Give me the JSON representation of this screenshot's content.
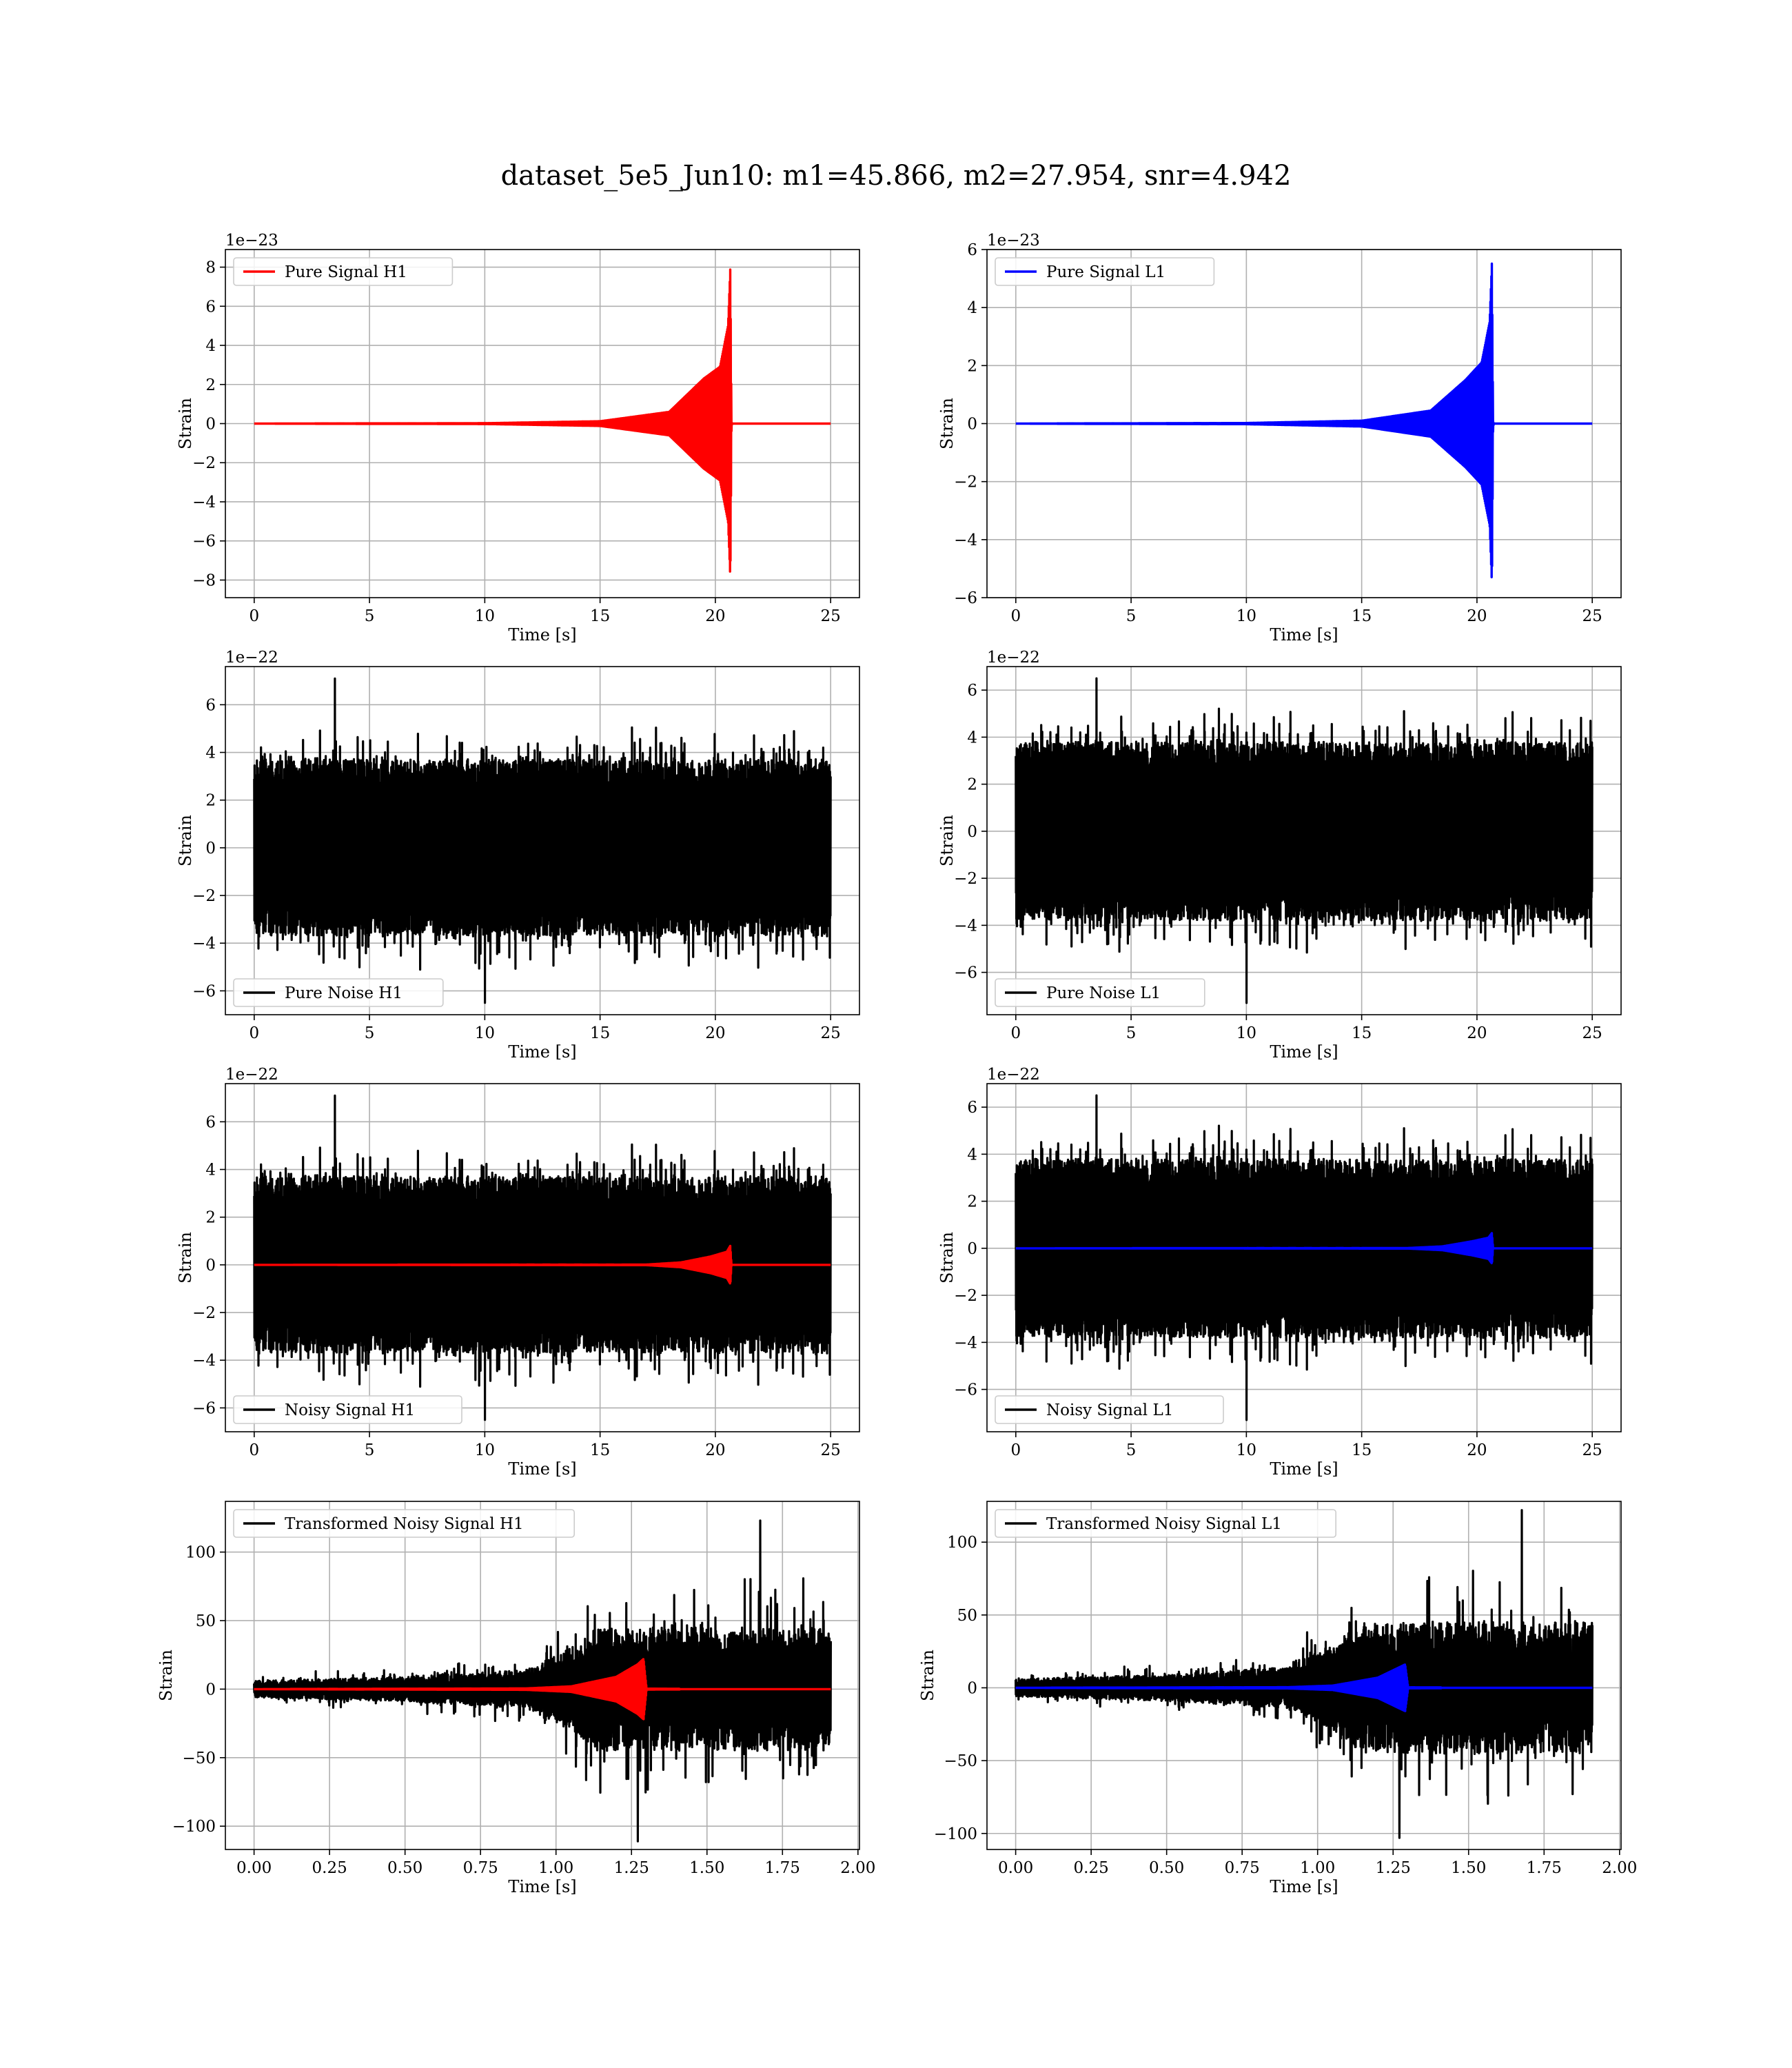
{
  "figure": {
    "title": "dataset_5e5_Jun10: m1=45.866, m2=27.954, snr=4.942"
  },
  "chart_data": [
    {
      "id": "pure-signal-h1",
      "type": "line",
      "xlabel": "Time [s]",
      "ylabel": "Strain",
      "offset_text": "1e−23",
      "xlim": [
        -1.25,
        26.25
      ],
      "ylim": [
        -8.9,
        8.9
      ],
      "xticks": [
        0,
        5,
        10,
        15,
        20,
        25
      ],
      "xtick_labels": [
        "0",
        "5",
        "10",
        "15",
        "20",
        "25"
      ],
      "yticks": [
        -8,
        -6,
        -4,
        -2,
        0,
        2,
        4,
        6,
        8
      ],
      "ytick_labels": [
        "−8",
        "−6",
        "−4",
        "−2",
        "0",
        "2",
        "4",
        "6",
        "8"
      ],
      "legend_position": "upper left",
      "series": [
        {
          "name": "Pure Signal H1",
          "color": "#ff0000",
          "kind": "chirp",
          "t_start": 0,
          "t_end": 25,
          "t_merger": 20.6,
          "envelope": [
            [
              0,
              0
            ],
            [
              10,
              0.02
            ],
            [
              15,
              0.12
            ],
            [
              18,
              0.6
            ],
            [
              19.5,
              2.3
            ],
            [
              20.2,
              2.9
            ],
            [
              20.55,
              5
            ],
            [
              20.65,
              8.0
            ],
            [
              20.7,
              0.05
            ],
            [
              25,
              0
            ]
          ]
        }
      ]
    },
    {
      "id": "pure-signal-l1",
      "type": "line",
      "xlabel": "Time [s]",
      "ylabel": "Strain",
      "offset_text": "1e−23",
      "xlim": [
        -1.25,
        26.25
      ],
      "ylim": [
        -6,
        6
      ],
      "xticks": [
        0,
        5,
        10,
        15,
        20,
        25
      ],
      "xtick_labels": [
        "0",
        "5",
        "10",
        "15",
        "20",
        "25"
      ],
      "yticks": [
        -6,
        -4,
        -2,
        0,
        2,
        4,
        6
      ],
      "ytick_labels": [
        "−6",
        "−4",
        "−2",
        "0",
        "2",
        "4",
        "6"
      ],
      "legend_position": "upper left",
      "series": [
        {
          "name": "Pure Signal L1",
          "color": "#0000ff",
          "kind": "chirp",
          "t_start": 0,
          "t_end": 25,
          "t_merger": 20.6,
          "envelope": [
            [
              0,
              0
            ],
            [
              10,
              0.02
            ],
            [
              15,
              0.1
            ],
            [
              18,
              0.45
            ],
            [
              19.5,
              1.5
            ],
            [
              20.2,
              2.1
            ],
            [
              20.55,
              3.5
            ],
            [
              20.65,
              5.6
            ],
            [
              20.7,
              0.05
            ],
            [
              25,
              0
            ]
          ]
        }
      ]
    },
    {
      "id": "pure-noise-h1",
      "type": "line",
      "xlabel": "Time [s]",
      "ylabel": "Strain",
      "offset_text": "1e−22",
      "xlim": [
        -1.25,
        26.25
      ],
      "ylim": [
        -7.0,
        7.6
      ],
      "xticks": [
        0,
        5,
        10,
        15,
        20,
        25
      ],
      "xtick_labels": [
        "0",
        "5",
        "10",
        "15",
        "20",
        "25"
      ],
      "yticks": [
        -6,
        -4,
        -2,
        0,
        2,
        4,
        6
      ],
      "ytick_labels": [
        "−6",
        "−4",
        "−2",
        "0",
        "2",
        "4",
        "6"
      ],
      "legend_position": "lower left",
      "series": [
        {
          "name": "Pure Noise H1",
          "color": "#000000",
          "kind": "noise",
          "seed": 11,
          "t_start": 0,
          "t_end": 25,
          "core": 3.7,
          "spread": 1.5,
          "max": 7.1,
          "min": -6.5
        }
      ]
    },
    {
      "id": "pure-noise-l1",
      "type": "line",
      "xlabel": "Time [s]",
      "ylabel": "Strain",
      "offset_text": "1e−22",
      "xlim": [
        -1.25,
        26.25
      ],
      "ylim": [
        -7.8,
        7.0
      ],
      "xticks": [
        0,
        5,
        10,
        15,
        20,
        25
      ],
      "xtick_labels": [
        "0",
        "5",
        "10",
        "15",
        "20",
        "25"
      ],
      "yticks": [
        -6,
        -4,
        -2,
        0,
        2,
        4,
        6
      ],
      "ytick_labels": [
        "−6",
        "−4",
        "−2",
        "0",
        "2",
        "4",
        "6"
      ],
      "legend_position": "lower left",
      "series": [
        {
          "name": "Pure Noise L1",
          "color": "#000000",
          "kind": "noise",
          "seed": 23,
          "t_start": 0,
          "t_end": 25,
          "core": 3.8,
          "spread": 1.5,
          "max": 6.5,
          "min": -7.3
        }
      ]
    },
    {
      "id": "noisy-signal-h1",
      "type": "line",
      "xlabel": "Time [s]",
      "ylabel": "Strain",
      "offset_text": "1e−22",
      "xlim": [
        -1.25,
        26.25
      ],
      "ylim": [
        -7.0,
        7.6
      ],
      "xticks": [
        0,
        5,
        10,
        15,
        20,
        25
      ],
      "xtick_labels": [
        "0",
        "5",
        "10",
        "15",
        "20",
        "25"
      ],
      "yticks": [
        -6,
        -4,
        -2,
        0,
        2,
        4,
        6
      ],
      "ytick_labels": [
        "−6",
        "−4",
        "−2",
        "0",
        "2",
        "4",
        "6"
      ],
      "legend_position": "lower left",
      "series": [
        {
          "name": "Noisy Signal H1",
          "color": "#000000",
          "kind": "noise",
          "seed": 11,
          "t_start": 0,
          "t_end": 25,
          "core": 3.7,
          "spread": 1.5,
          "max": 7.1,
          "min": -6.5
        },
        {
          "color": "#ff0000",
          "kind": "chirp",
          "t_start": 0,
          "t_end": 25,
          "t_merger": 20.6,
          "envelope": [
            [
              0,
              0
            ],
            [
              17,
              0.01
            ],
            [
              18.5,
              0.1
            ],
            [
              19.8,
              0.35
            ],
            [
              20.5,
              0.55
            ],
            [
              20.65,
              0.8
            ],
            [
              20.7,
              0.01
            ],
            [
              25,
              0
            ]
          ]
        }
      ]
    },
    {
      "id": "noisy-signal-l1",
      "type": "line",
      "xlabel": "Time [s]",
      "ylabel": "Strain",
      "offset_text": "1e−22",
      "xlim": [
        -1.25,
        26.25
      ],
      "ylim": [
        -7.8,
        7.0
      ],
      "xticks": [
        0,
        5,
        10,
        15,
        20,
        25
      ],
      "xtick_labels": [
        "0",
        "5",
        "10",
        "15",
        "20",
        "25"
      ],
      "yticks": [
        -6,
        -4,
        -2,
        0,
        2,
        4,
        6
      ],
      "ytick_labels": [
        "−6",
        "−4",
        "−2",
        "0",
        "2",
        "4",
        "6"
      ],
      "legend_position": "lower left",
      "series": [
        {
          "name": "Noisy Signal L1",
          "color": "#000000",
          "kind": "noise",
          "seed": 23,
          "t_start": 0,
          "t_end": 25,
          "core": 3.8,
          "spread": 1.5,
          "max": 6.5,
          "min": -7.3
        },
        {
          "color": "#0000ff",
          "kind": "chirp",
          "t_start": 0,
          "t_end": 25,
          "t_merger": 20.6,
          "envelope": [
            [
              0,
              0
            ],
            [
              17,
              0.01
            ],
            [
              18.5,
              0.08
            ],
            [
              19.8,
              0.3
            ],
            [
              20.5,
              0.45
            ],
            [
              20.65,
              0.65
            ],
            [
              20.7,
              0.01
            ],
            [
              25,
              0
            ]
          ]
        }
      ]
    },
    {
      "id": "transformed-noisy-signal-h1",
      "type": "line",
      "xlabel": "Time [s]",
      "ylabel": "Strain",
      "offset_text": "",
      "xlim": [
        -0.095,
        2.005
      ],
      "ylim": [
        -117,
        137
      ],
      "xticks": [
        0,
        0.25,
        0.5,
        0.75,
        1.0,
        1.25,
        1.5,
        1.75,
        2.0
      ],
      "xtick_labels": [
        "0.00",
        "0.25",
        "0.50",
        "0.75",
        "1.00",
        "1.25",
        "1.50",
        "1.75",
        "2.00"
      ],
      "yticks": [
        -100,
        -50,
        0,
        50,
        100
      ],
      "ytick_labels": [
        "−100",
        "−50",
        "0",
        "50",
        "100"
      ],
      "legend_position": "upper left",
      "series": [
        {
          "name": "Transformed Noisy Signal H1",
          "color": "#000000",
          "kind": "tnoise",
          "seed": 37,
          "t_start": 0,
          "t_end": 1.91,
          "envelope": [
            [
              0,
              6
            ],
            [
              0.5,
              9
            ],
            [
              0.9,
              14
            ],
            [
              1.05,
              30
            ],
            [
              1.15,
              45
            ],
            [
              1.9,
              45
            ]
          ],
          "max": 123,
          "min": -111
        },
        {
          "color": "#ff0000",
          "kind": "tchirp",
          "t_start": 0,
          "t_end": 1.91,
          "t_merger": 1.29,
          "envelope": [
            [
              0,
              0
            ],
            [
              0.9,
              0.5
            ],
            [
              1.05,
              2
            ],
            [
              1.2,
              9
            ],
            [
              1.27,
              18
            ],
            [
              1.29,
              22
            ],
            [
              1.3,
              0.3
            ],
            [
              1.91,
              0
            ]
          ]
        }
      ]
    },
    {
      "id": "transformed-noisy-signal-l1",
      "type": "line",
      "xlabel": "Time [s]",
      "ylabel": "Strain",
      "offset_text": "",
      "xlim": [
        -0.095,
        2.005
      ],
      "ylim": [
        -111,
        128
      ],
      "xticks": [
        0,
        0.25,
        0.5,
        0.75,
        1.0,
        1.25,
        1.5,
        1.75,
        2.0
      ],
      "xtick_labels": [
        "0.00",
        "0.25",
        "0.50",
        "0.75",
        "1.00",
        "1.25",
        "1.50",
        "1.75",
        "2.00"
      ],
      "yticks": [
        -100,
        -50,
        0,
        50,
        100
      ],
      "ytick_labels": [
        "−100",
        "−50",
        "0",
        "50",
        "100"
      ],
      "legend_position": "upper left",
      "series": [
        {
          "name": "Transformed Noisy Signal L1",
          "color": "#000000",
          "kind": "tnoise",
          "seed": 41,
          "t_start": 0,
          "t_end": 1.91,
          "envelope": [
            [
              0,
              6
            ],
            [
              0.5,
              9
            ],
            [
              0.9,
              14
            ],
            [
              1.05,
              30
            ],
            [
              1.15,
              45
            ],
            [
              1.9,
              45
            ]
          ],
          "max": 122,
          "min": -103
        },
        {
          "color": "#0000ff",
          "kind": "tchirp",
          "t_start": 0,
          "t_end": 1.91,
          "t_merger": 1.29,
          "envelope": [
            [
              0,
              0
            ],
            [
              0.9,
              0.4
            ],
            [
              1.05,
              1.5
            ],
            [
              1.2,
              7
            ],
            [
              1.27,
              14
            ],
            [
              1.29,
              16
            ],
            [
              1.3,
              0.3
            ],
            [
              1.91,
              0
            ]
          ]
        }
      ]
    }
  ]
}
